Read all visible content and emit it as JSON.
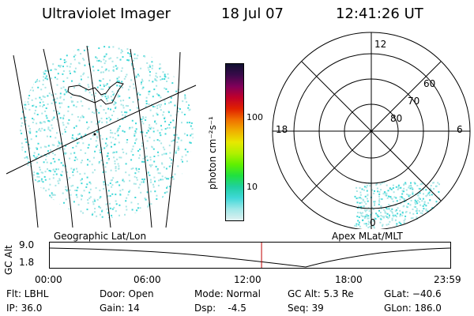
{
  "header": {
    "title": "Ultraviolet Imager",
    "date": "18 Jul 07",
    "time": "12:41:26 UT"
  },
  "colorbar": {
    "unit_label": "photon cm⁻²s⁻¹",
    "ticks": [
      "100",
      "10"
    ],
    "colors": [
      "#101030",
      "#3a0a4a",
      "#80005a",
      "#c0002a",
      "#e02000",
      "#f07000",
      "#f0b000",
      "#e8e800",
      "#b0f000",
      "#60f000",
      "#20e040",
      "#20d0a0",
      "#40d8d8",
      "#a0e8e8",
      "#e0f0f0"
    ]
  },
  "polar_plot": {
    "mlt_labels": [
      "12",
      "18",
      "6",
      "0"
    ],
    "mlat_labels": [
      "60",
      "70",
      "80"
    ]
  },
  "map_labels": {
    "left": "Geographic Lat/Lon",
    "right": "Apex  MLat/MLT"
  },
  "alt_strip": {
    "axis_label": "GC Alt",
    "y_ticks": [
      "9.0",
      "1.8"
    ],
    "x_ticks": [
      "00:00",
      "06:00",
      "12:00",
      "18:00",
      "23:59"
    ],
    "current_time_hours": 12.69
  },
  "footer": {
    "flt": "Flt: LBHL",
    "ip": "IP: 36.0",
    "door": "Door: Open",
    "gain": "Gain: 14",
    "mode": "Mode: Normal",
    "dsp": "Dsp:    -4.5",
    "gcalt": "GC Alt: 5.3 Re",
    "seq": "Seq: 39",
    "glat": "GLat: −40.6",
    "glon": "GLon: 186.0"
  },
  "colors": {
    "speckle": "#40d8d8",
    "speckle_light": "#a8e6e6",
    "time_marker": "#c00000"
  }
}
